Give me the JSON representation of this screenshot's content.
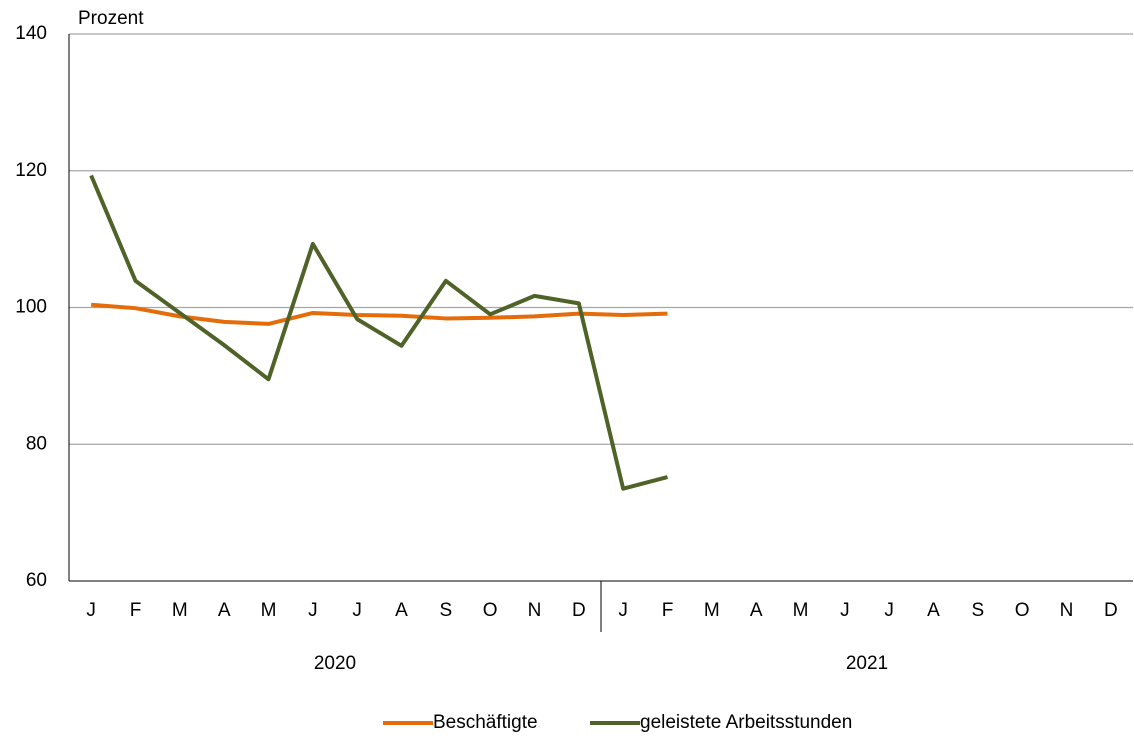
{
  "chart_data": {
    "type": "line",
    "y_label": "Prozent",
    "categories": [
      "J",
      "F",
      "M",
      "A",
      "M",
      "J",
      "J",
      "A",
      "S",
      "O",
      "N",
      "D",
      "J",
      "F",
      "M",
      "A",
      "M",
      "J",
      "J",
      "A",
      "S",
      "O",
      "N",
      "D"
    ],
    "groups": [
      "2020",
      "2021"
    ],
    "series": [
      {
        "name": "Beschäftigte",
        "color": "#e46c0a",
        "values": [
          100.4,
          99.9,
          98.7,
          97.9,
          97.6,
          99.2,
          98.9,
          98.8,
          98.4,
          98.5,
          98.7,
          99.1,
          98.9,
          99.1,
          null,
          null,
          null,
          null,
          null,
          null,
          null,
          null,
          null,
          null
        ]
      },
      {
        "name": "geleistete Arbeitsstunden",
        "color": "#4f6228",
        "values": [
          119.3,
          103.9,
          99.2,
          94.5,
          89.5,
          109.3,
          98.3,
          94.4,
          103.9,
          99.0,
          101.7,
          100.6,
          73.5,
          75.2,
          null,
          null,
          null,
          null,
          null,
          null,
          null,
          null,
          null,
          null
        ]
      }
    ],
    "ylim": [
      60,
      140
    ],
    "yticks": [
      60,
      80,
      100,
      120,
      140
    ],
    "grid": true
  }
}
